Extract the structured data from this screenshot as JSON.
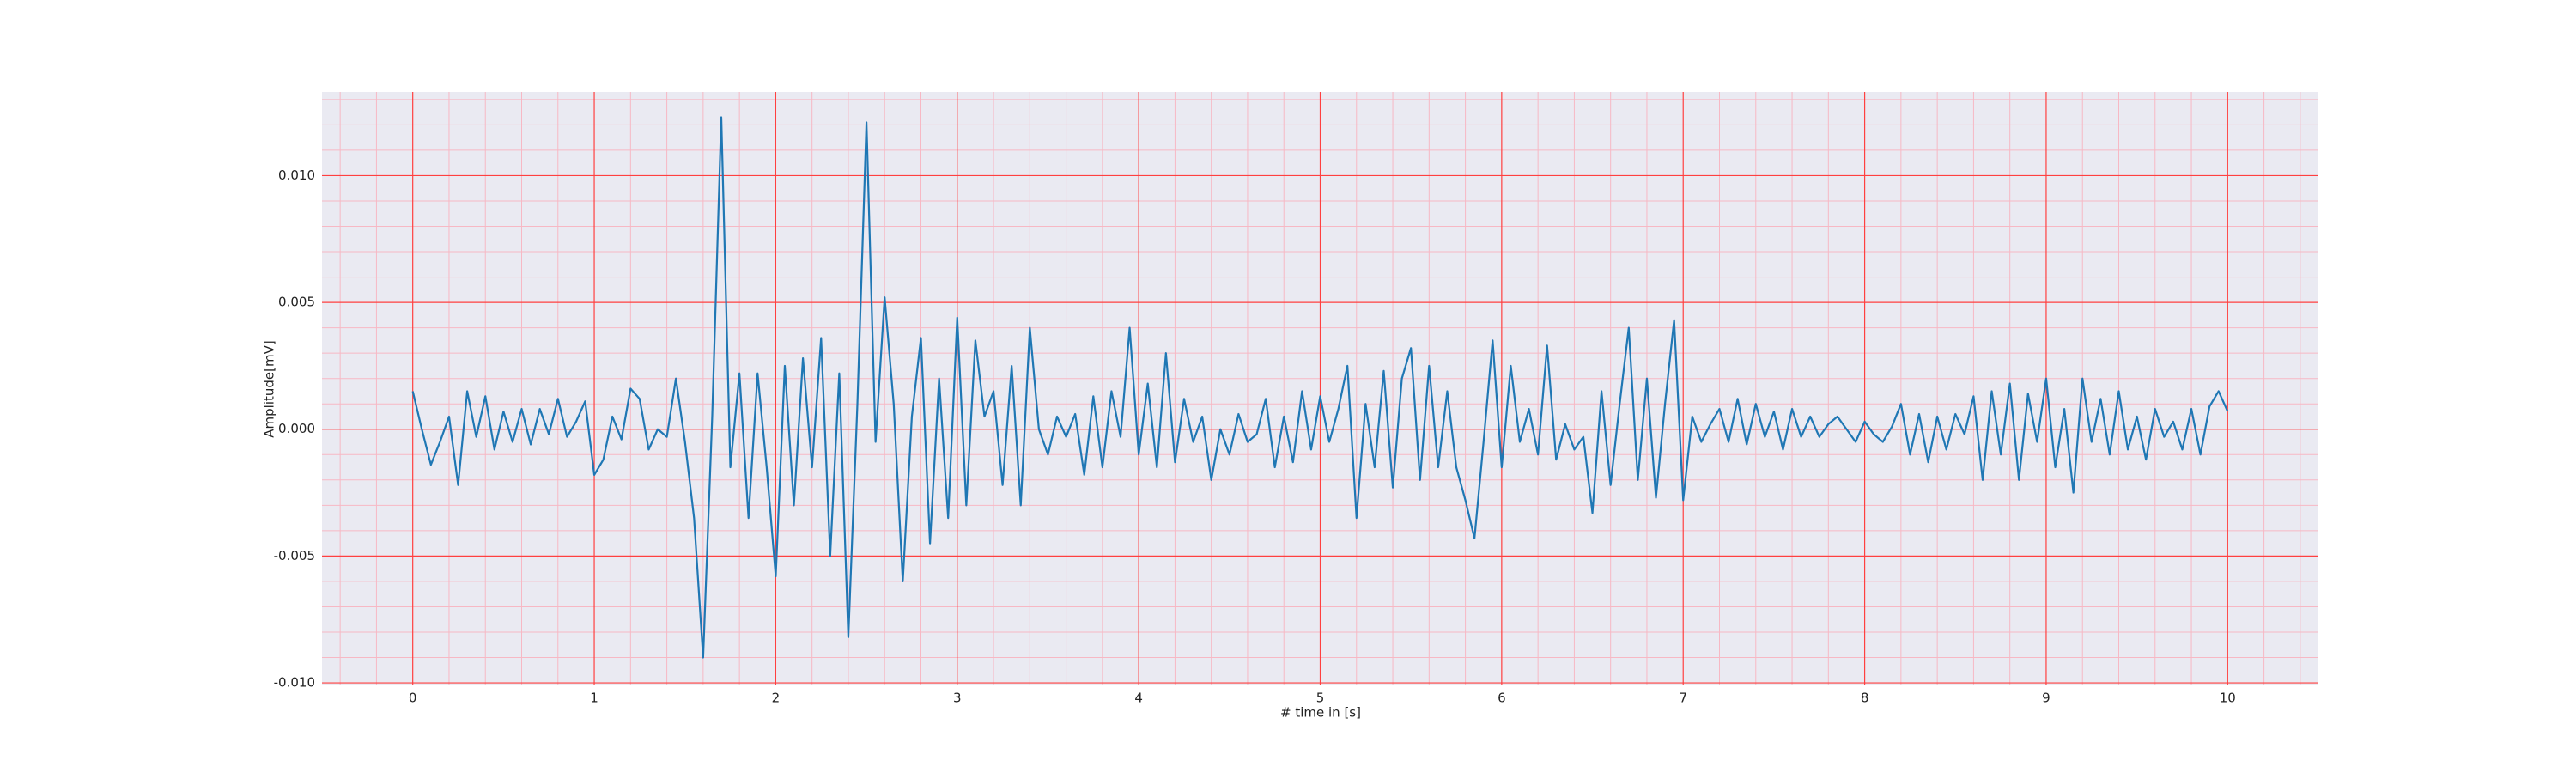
{
  "chart_data": {
    "type": "line",
    "xlabel": "# time in [s]",
    "ylabel": "Amplitude[mV]",
    "xlim": [
      -0.5,
      10.5
    ],
    "ylim": [
      -0.0101,
      0.0133
    ],
    "xticks": [
      0,
      1,
      2,
      3,
      4,
      5,
      6,
      7,
      8,
      9,
      10
    ],
    "yticks": [
      {
        "value": -0.01,
        "label": "-0.010"
      },
      {
        "value": -0.005,
        "label": "-0.005"
      },
      {
        "value": 0,
        "label": "0.000"
      },
      {
        "value": 0.005,
        "label": "0.005"
      },
      {
        "value": 0.01,
        "label": "0.010"
      }
    ],
    "xminorticks": [
      -0.4,
      -0.2,
      0.2,
      0.4,
      0.6,
      0.8,
      1.2,
      1.4,
      1.6,
      1.8,
      2.2,
      2.4,
      2.6,
      2.8,
      3.2,
      3.4,
      3.6,
      3.8,
      4.2,
      4.4,
      4.6,
      4.8,
      5.2,
      5.4,
      5.6,
      5.8,
      6.2,
      6.4,
      6.6,
      6.8,
      7.2,
      7.4,
      7.6,
      7.8,
      8.2,
      8.4,
      8.6,
      8.8,
      9.2,
      9.4,
      9.6,
      9.8,
      10.2,
      10.4
    ],
    "yminorticks": [
      -0.009,
      -0.008,
      -0.007,
      -0.006,
      -0.004,
      -0.003,
      -0.002,
      -0.001,
      0.001,
      0.002,
      0.003,
      0.004,
      0.006,
      0.007,
      0.008,
      0.009,
      0.011,
      0.012,
      0.013
    ],
    "grid": true,
    "grid_color": "#ff4040",
    "minor_grid_color": "#f7b8c4",
    "background": "#eaeaf2",
    "color": "#1f77b4",
    "x": [
      0,
      0.05,
      0.1,
      0.15,
      0.2,
      0.25,
      0.3,
      0.35,
      0.4,
      0.45,
      0.5,
      0.55,
      0.6,
      0.65,
      0.7,
      0.75,
      0.8,
      0.85,
      0.9,
      0.95,
      1,
      1.05,
      1.1,
      1.15,
      1.2,
      1.25,
      1.3,
      1.35,
      1.4,
      1.45,
      1.5,
      1.55,
      1.6,
      1.65,
      1.7,
      1.75,
      1.8,
      1.85,
      1.9,
      1.95,
      2,
      2.05,
      2.1,
      2.15,
      2.2,
      2.25,
      2.3,
      2.35,
      2.4,
      2.45,
      2.5,
      2.55,
      2.6,
      2.65,
      2.7,
      2.75,
      2.8,
      2.85,
      2.9,
      2.95,
      3,
      3.05,
      3.1,
      3.15,
      3.2,
      3.25,
      3.3,
      3.35,
      3.4,
      3.45,
      3.5,
      3.55,
      3.6,
      3.65,
      3.7,
      3.75,
      3.8,
      3.85,
      3.9,
      3.95,
      4,
      4.05,
      4.1,
      4.15,
      4.2,
      4.25,
      4.3,
      4.35,
      4.4,
      4.45,
      4.5,
      4.55,
      4.6,
      4.65,
      4.7,
      4.75,
      4.8,
      4.85,
      4.9,
      4.95,
      5,
      5.05,
      5.1,
      5.15,
      5.2,
      5.25,
      5.3,
      5.35,
      5.4,
      5.45,
      5.5,
      5.55,
      5.6,
      5.65,
      5.7,
      5.75,
      5.8,
      5.85,
      5.9,
      5.95,
      6,
      6.05,
      6.1,
      6.15,
      6.2,
      6.25,
      6.3,
      6.35,
      6.4,
      6.45,
      6.5,
      6.55,
      6.6,
      6.65,
      6.7,
      6.75,
      6.8,
      6.85,
      6.9,
      6.95,
      7,
      7.05,
      7.1,
      7.15,
      7.2,
      7.25,
      7.3,
      7.35,
      7.4,
      7.45,
      7.5,
      7.55,
      7.6,
      7.65,
      7.7,
      7.75,
      7.8,
      7.85,
      7.9,
      7.95,
      8,
      8.05,
      8.1,
      8.15,
      8.2,
      8.25,
      8.3,
      8.35,
      8.4,
      8.45,
      8.5,
      8.55,
      8.6,
      8.65,
      8.7,
      8.75,
      8.8,
      8.85,
      8.9,
      8.95,
      9,
      9.05,
      9.1,
      9.15,
      9.2,
      9.25,
      9.3,
      9.35,
      9.4,
      9.45,
      9.5,
      9.55,
      9.6,
      9.65,
      9.7,
      9.75,
      9.8,
      9.85,
      9.9,
      9.95,
      10
    ],
    "values": [
      0.0015,
      0,
      -0.0014,
      -0.0005,
      0.0005,
      -0.0022,
      0.0015,
      -0.0003,
      0.0013,
      -0.0008,
      0.0007,
      -0.0005,
      0.0008,
      -0.0006,
      0.0008,
      -0.0002,
      0.0012,
      -0.0003,
      0.0003,
      0.0011,
      -0.0018,
      -0.0012,
      0.0005,
      -0.0004,
      0.0016,
      0.0012,
      -0.0008,
      0,
      -0.0003,
      0.002,
      -0.0005,
      -0.0035,
      -0.009,
      0.0005,
      0.0123,
      -0.0015,
      0.0022,
      -0.0035,
      0.0022,
      -0.0015,
      -0.0058,
      0.0025,
      -0.003,
      0.0028,
      -0.0015,
      0.0036,
      -0.005,
      0.0022,
      -0.0082,
      0.001,
      0.0121,
      -0.0005,
      0.0052,
      0.001,
      -0.006,
      0.0005,
      0.0036,
      -0.0045,
      0.002,
      -0.0035,
      0.0044,
      -0.003,
      0.0035,
      0.0005,
      0.0015,
      -0.0022,
      0.0025,
      -0.003,
      0.004,
      0,
      -0.001,
      0.0005,
      -0.0003,
      0.0006,
      -0.0018,
      0.0013,
      -0.0015,
      0.0015,
      -0.0003,
      0.004,
      -0.001,
      0.0018,
      -0.0015,
      0.003,
      -0.0013,
      0.0012,
      -0.0005,
      0.0005,
      -0.002,
      0,
      -0.001,
      0.0006,
      -0.0005,
      -0.0002,
      0.0012,
      -0.0015,
      0.0005,
      -0.0013,
      0.0015,
      -0.0008,
      0.0013,
      -0.0005,
      0.0008,
      0.0025,
      -0.0035,
      0.001,
      -0.0015,
      0.0023,
      -0.0023,
      0.002,
      0.0032,
      -0.002,
      0.0025,
      -0.0015,
      0.0015,
      -0.0015,
      -0.0028,
      -0.0043,
      -0.0005,
      0.0035,
      -0.0015,
      0.0025,
      -0.0005,
      0.0008,
      -0.001,
      0.0033,
      -0.0012,
      0.0002,
      -0.0008,
      -0.0003,
      -0.0033,
      0.0015,
      -0.0022,
      0.001,
      0.004,
      -0.002,
      0.002,
      -0.0027,
      0.001,
      0.0043,
      -0.0028,
      0.0005,
      -0.0005,
      0.0002,
      0.0008,
      -0.0005,
      0.0012,
      -0.0006,
      0.001,
      -0.0003,
      0.0007,
      -0.0008,
      0.0008,
      -0.0003,
      0.0005,
      -0.0003,
      0.0002,
      0.0005,
      0,
      -0.0005,
      0.0003,
      -0.0002,
      -0.0005,
      0.0001,
      0.001,
      -0.001,
      0.0006,
      -0.0013,
      0.0005,
      -0.0008,
      0.0006,
      -0.0002,
      0.0013,
      -0.002,
      0.0015,
      -0.001,
      0.0018,
      -0.002,
      0.0014,
      -0.0005,
      0.002,
      -0.0015,
      0.0008,
      -0.0025,
      0.002,
      -0.0005,
      0.0012,
      -0.001,
      0.0015,
      -0.0008,
      0.0005,
      -0.0012,
      0.0008,
      -0.0003,
      0.0003,
      -0.0008,
      0.0008,
      -0.001,
      0.0009,
      0.0015,
      0.0007
    ]
  }
}
